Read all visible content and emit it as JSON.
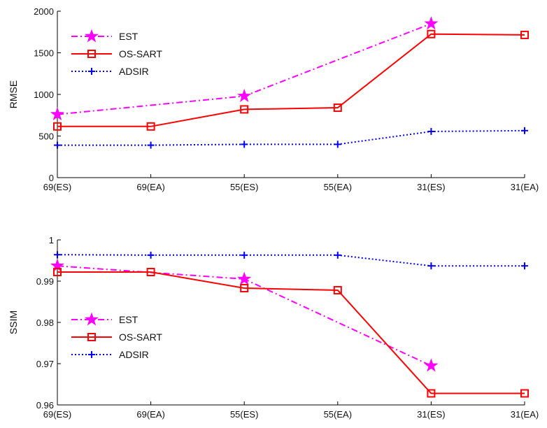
{
  "chart_data": [
    {
      "type": "line",
      "categories": [
        "69(ES)",
        "69(EA)",
        "55(ES)",
        "55(EA)",
        "31(ES)",
        "31(EA)"
      ],
      "ylabel": "RMSE",
      "xlabel": "",
      "ylim": [
        0,
        2000
      ],
      "yticks": [
        "0",
        "500",
        "1000",
        "1500",
        "2000"
      ],
      "grid": false,
      "legend": "top-left",
      "series": [
        {
          "name": "EST",
          "color": "#ff00ff",
          "style": "dash-dot",
          "marker": "star",
          "points": [
            [
              0,
              760
            ],
            [
              2,
              980
            ],
            [
              4,
              1850
            ]
          ]
        },
        {
          "name": "OS-SART",
          "color": "#ff0000",
          "style": "solid",
          "marker": "square",
          "points": [
            [
              0,
              615
            ],
            [
              1,
              615
            ],
            [
              2,
              820
            ],
            [
              3,
              840
            ],
            [
              4,
              1725
            ],
            [
              5,
              1715
            ]
          ]
        },
        {
          "name": "ADSIR",
          "color": "#0000ff",
          "style": "dotted",
          "marker": "plus",
          "points": [
            [
              0,
              390
            ],
            [
              1,
              390
            ],
            [
              2,
              400
            ],
            [
              3,
              400
            ],
            [
              4,
              555
            ],
            [
              5,
              565
            ]
          ]
        }
      ]
    },
    {
      "type": "line",
      "categories": [
        "69(ES)",
        "69(EA)",
        "55(ES)",
        "55(EA)",
        "31(ES)",
        "31(EA)"
      ],
      "ylabel": "SSIM",
      "xlabel": "",
      "ylim": [
        0.96,
        1.0
      ],
      "yticks": [
        "0.96",
        "0.97",
        "0.98",
        "0.99",
        "1"
      ],
      "grid": false,
      "legend": "bottom-left",
      "series": [
        {
          "name": "EST",
          "color": "#ff00ff",
          "style": "dash-dot",
          "marker": "star",
          "points": [
            [
              0,
              0.9937
            ],
            [
              2,
              0.9905
            ],
            [
              4,
              0.9695
            ]
          ]
        },
        {
          "name": "OS-SART",
          "color": "#ff0000",
          "style": "solid",
          "marker": "square",
          "points": [
            [
              0,
              0.9922
            ],
            [
              1,
              0.9922
            ],
            [
              2,
              0.9883
            ],
            [
              3,
              0.9878
            ],
            [
              4,
              0.9628
            ],
            [
              5,
              0.9628
            ]
          ]
        },
        {
          "name": "ADSIR",
          "color": "#0000ff",
          "style": "dotted",
          "marker": "plus",
          "points": [
            [
              0,
              0.9964
            ],
            [
              1,
              0.9963
            ],
            [
              2,
              0.9963
            ],
            [
              3,
              0.9963
            ],
            [
              4,
              0.9937
            ],
            [
              5,
              0.9937
            ]
          ]
        }
      ]
    }
  ]
}
